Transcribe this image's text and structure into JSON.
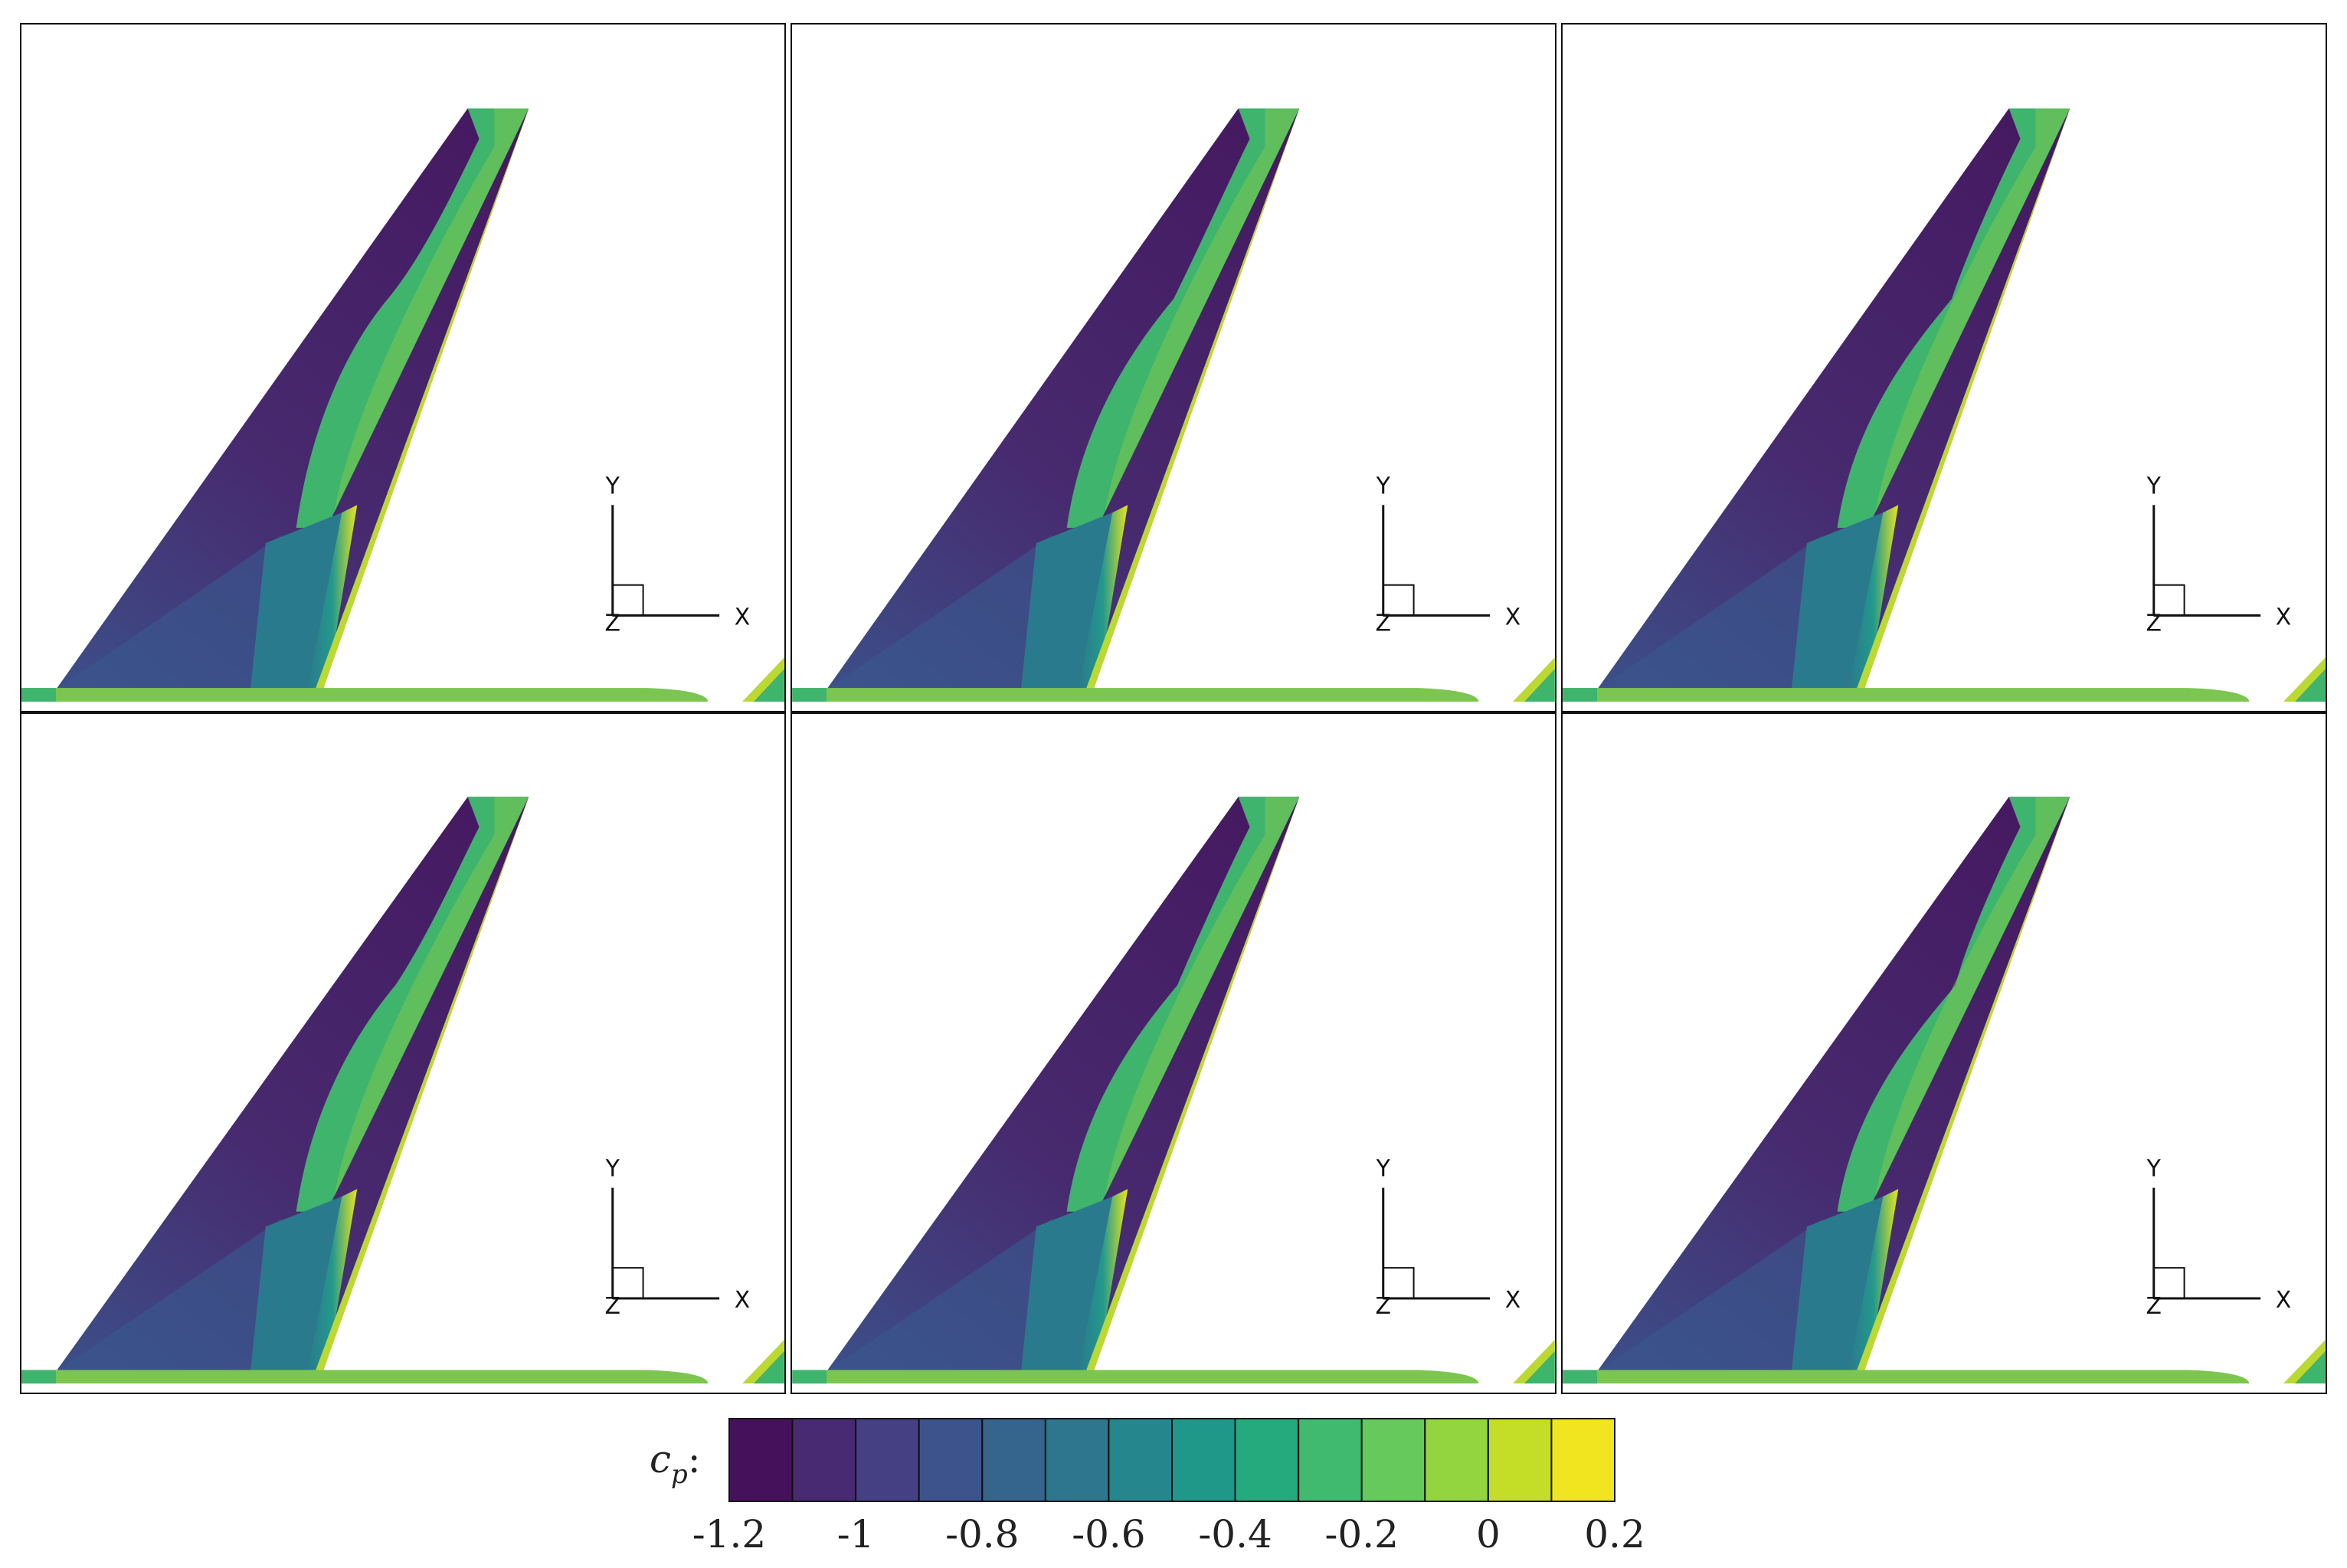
{
  "chart_data": {
    "type": "heatmap",
    "description_kind": "surface pressure coefficient contour plots",
    "panels": [
      {
        "axes": {
          "x": "X",
          "y": "Y",
          "z": "Z"
        }
      },
      {
        "axes": {
          "x": "X",
          "y": "Y",
          "z": "Z"
        }
      },
      {
        "axes": {
          "x": "X",
          "y": "Y",
          "z": "Z"
        }
      },
      {
        "axes": {
          "x": "X",
          "y": "Y",
          "z": "Z"
        }
      },
      {
        "axes": {
          "x": "X",
          "y": "Y",
          "z": "Z"
        }
      },
      {
        "axes": {
          "x": "X",
          "y": "Y",
          "z": "Z"
        }
      }
    ],
    "colorbar": {
      "title_base": "c",
      "title_sub": "p",
      "title_suffix": ":",
      "range": [
        -1.2,
        0.2
      ],
      "levels": 14,
      "ticks": [
        -1.2,
        -1,
        -0.8,
        -0.6,
        -0.4,
        -0.2,
        0,
        0.2
      ],
      "tick_labels": [
        "-1.2",
        "-1",
        "-0.8",
        "-0.6",
        "-0.4",
        "-0.2",
        "0",
        "0.2"
      ],
      "colormap": "viridis",
      "colors": [
        "#45115a",
        "#482a72",
        "#453f83",
        "#3d538b",
        "#35658d",
        "#2d768e",
        "#25868d",
        "#1f988a",
        "#25aa7e",
        "#3fba6e",
        "#66c95b",
        "#92d53e",
        "#c4de27",
        "#f0e51e"
      ]
    }
  },
  "colors": {
    "deep": "#45115a",
    "dark": "#472a6f",
    "mid_dark": "#3a558c",
    "teal": "#2a7a8e",
    "green_teal": "#23998a",
    "green": "#3fb46d",
    "light_green": "#7cc650",
    "yellow_green": "#bcd931",
    "yellow": "#eae41f",
    "frame": "#111111"
  }
}
